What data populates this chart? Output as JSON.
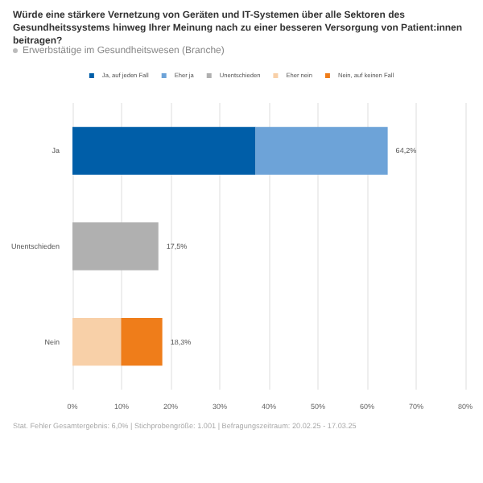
{
  "chart_data": {
    "type": "bar",
    "orientation": "horizontal",
    "stacked": true,
    "title": "Würde eine stärkere Vernetzung von Geräten und IT-Systemen über alle Sektoren des Gesundheitssystems hinweg Ihrer Meinung nach zu einer besseren Versorgung von Patient:innen beitragen?",
    "subtitle": "Erwerbstätige im Gesundheitswesen (Branche)",
    "categories": [
      "Ja",
      "Unentschieden",
      "Nein"
    ],
    "series": [
      {
        "name": "Ja, auf jeden Fall",
        "color": "#005ea8",
        "values": [
          37.3,
          null,
          null
        ]
      },
      {
        "name": "Eher ja",
        "color": "#6da3d8",
        "values": [
          26.9,
          null,
          null
        ]
      },
      {
        "name": "Unentschieden",
        "color": "#b0b0b0",
        "values": [
          null,
          17.5,
          null
        ]
      },
      {
        "name": "Eher nein",
        "color": "#f8d0a8",
        "values": [
          null,
          null,
          9.9
        ]
      },
      {
        "name": "Nein, auf keinen Fall",
        "color": "#ef7d1a",
        "values": [
          null,
          null,
          8.4
        ]
      }
    ],
    "totals": [
      "64,2%",
      "17,5%",
      "18,3%"
    ],
    "xlim": [
      0,
      80
    ],
    "xticks": [
      {
        "value": 0,
        "label": "0%"
      },
      {
        "value": 10,
        "label": "10%"
      },
      {
        "value": 20,
        "label": "20%"
      },
      {
        "value": 30,
        "label": "30%"
      },
      {
        "value": 40,
        "label": "40%"
      },
      {
        "value": 50,
        "label": "50%"
      },
      {
        "value": 60,
        "label": "60%"
      },
      {
        "value": 70,
        "label": "70%"
      },
      {
        "value": 80,
        "label": "80%"
      }
    ],
    "grid": "x",
    "legend": "top",
    "annotations": [
      "Stat. Fehler Gesamtergebnis: 6,0% | Stichprobengröße: 1.001 | Befragungszeitraum: 20.02.25 - 17.03.25"
    ]
  }
}
